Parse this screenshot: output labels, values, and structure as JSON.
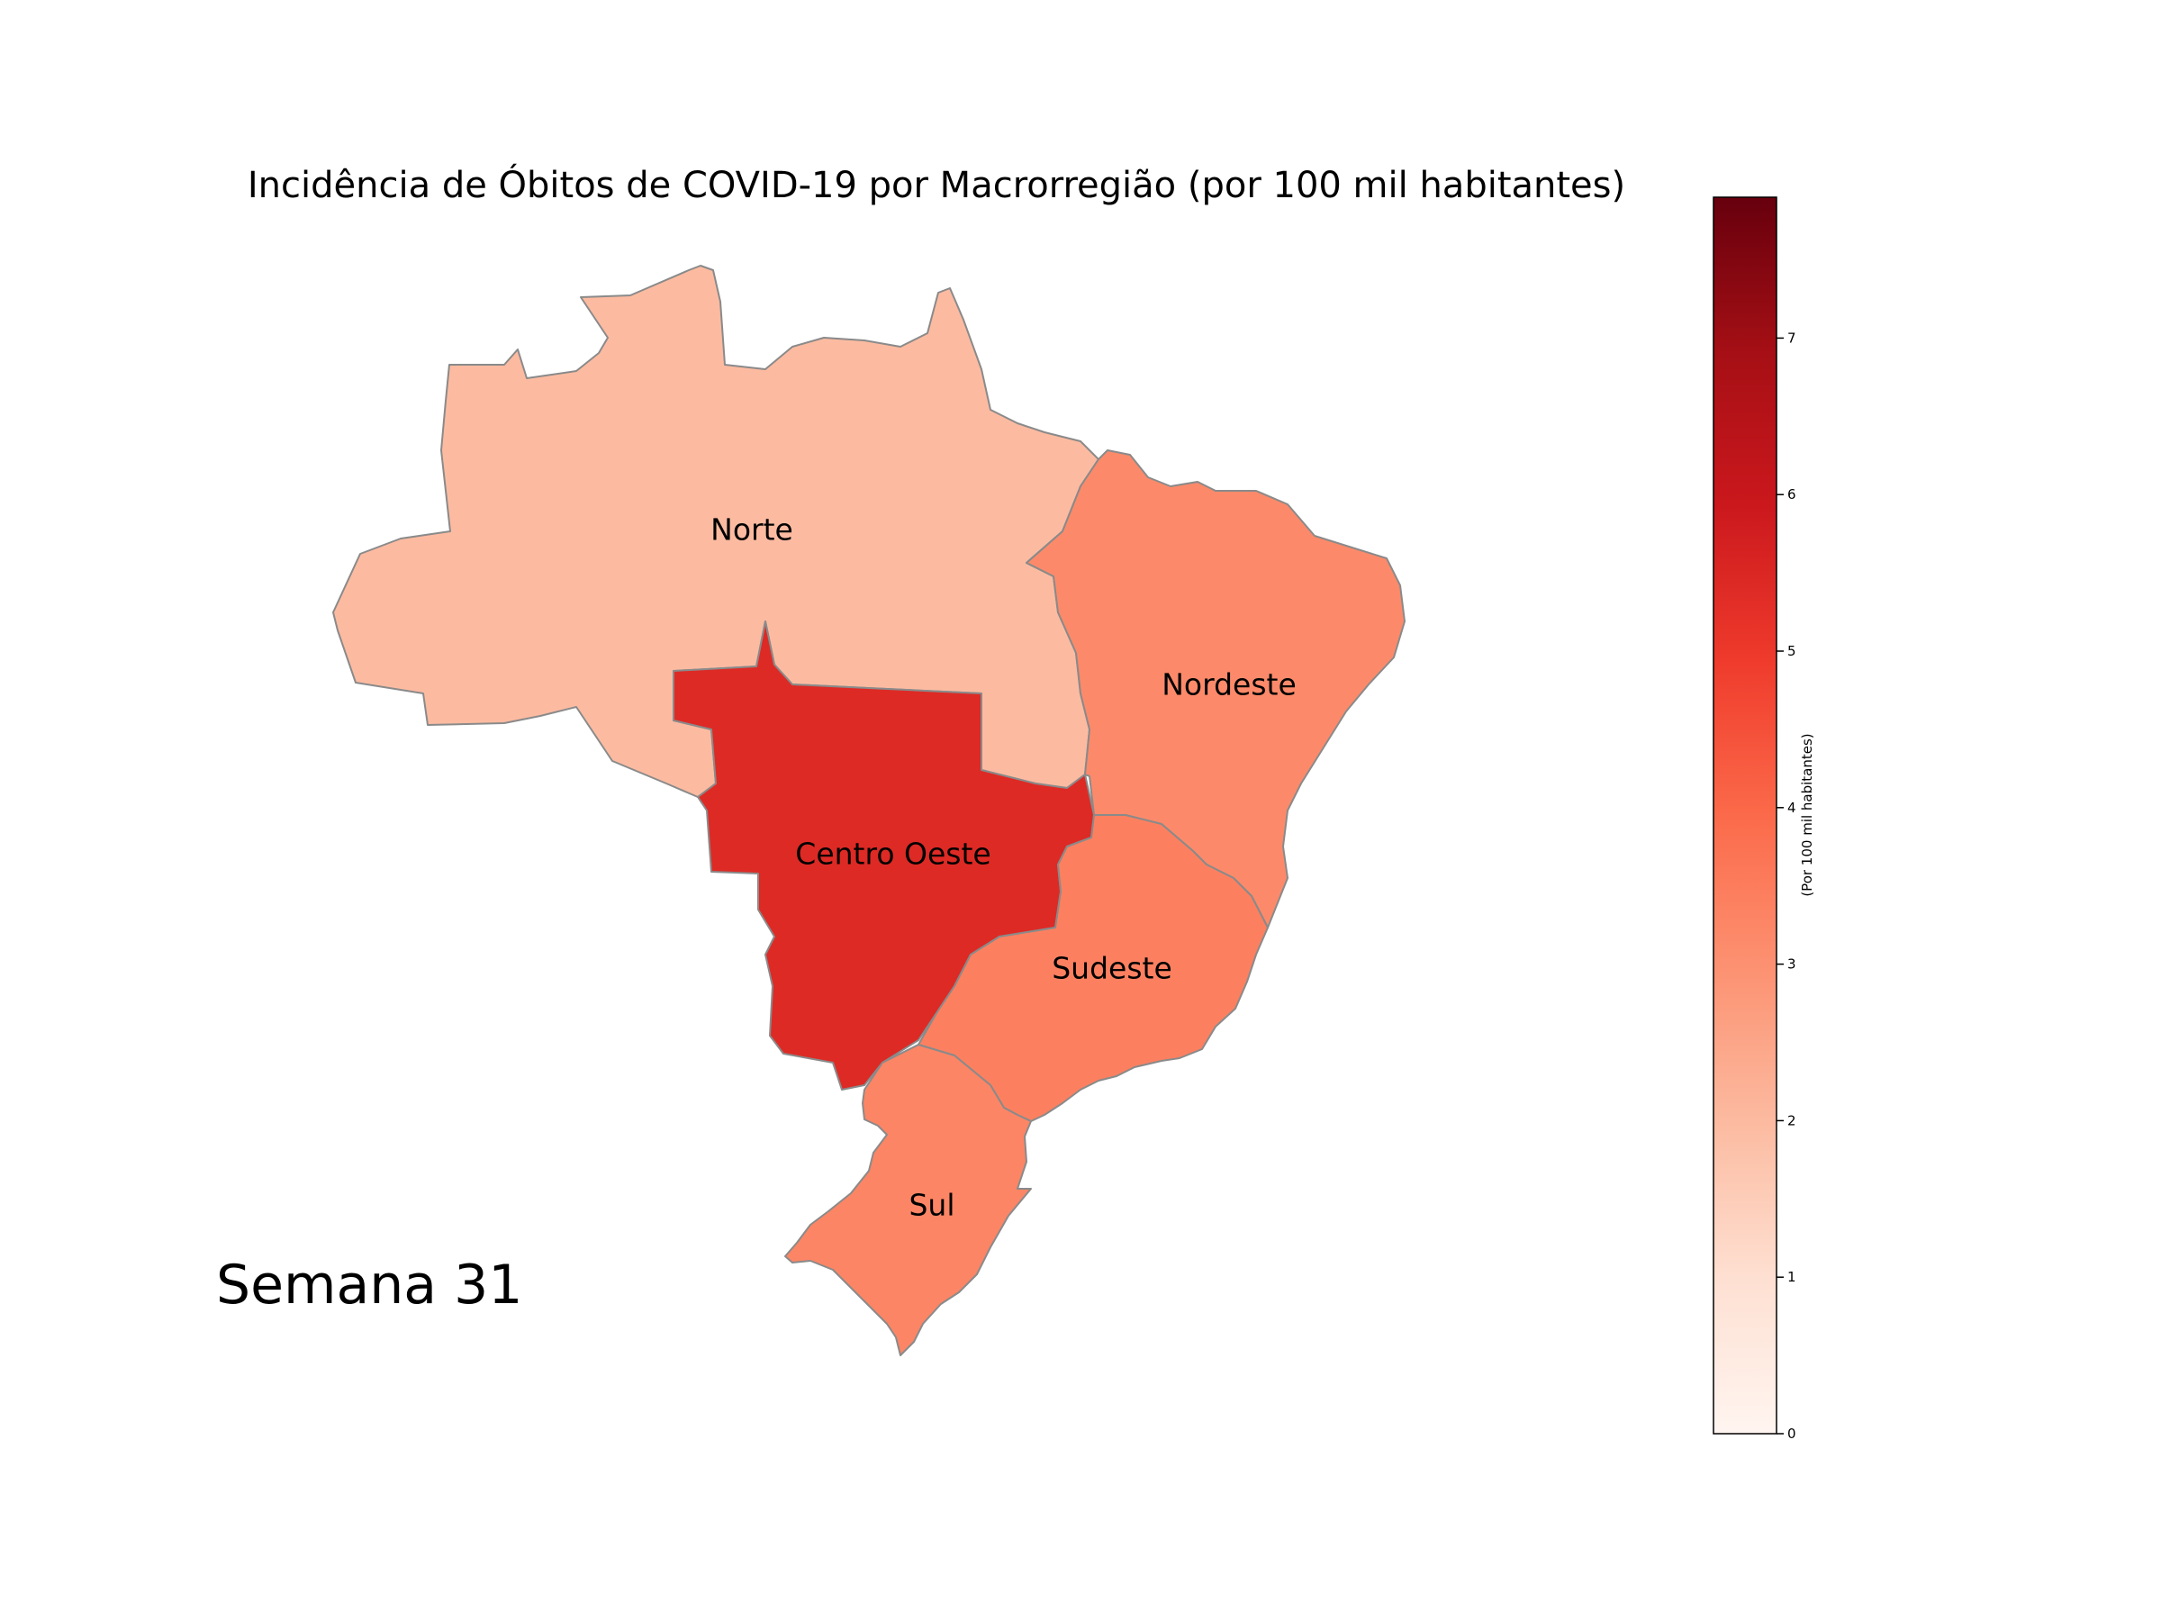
{
  "title": "Incidência de Óbitos de COVID-19 por Macrorregião (por 100 mil habitantes)",
  "week_label": "Semana 31",
  "colorbar": {
    "label": "(Por 100 mil habitantes)",
    "min": 0,
    "max": 7.9,
    "ticks": [
      "0",
      "1",
      "2",
      "3",
      "4",
      "5",
      "6",
      "7"
    ],
    "colormap": "Reds"
  },
  "regions": [
    {
      "name": "Norte",
      "value": 1.8,
      "color": "#fcbba1"
    },
    {
      "name": "Nordeste",
      "value": 3.0,
      "color": "#fc8a6a"
    },
    {
      "name": "Centro Oeste",
      "value": 5.4,
      "color": "#dd2a25"
    },
    {
      "name": "Sudeste",
      "value": 3.2,
      "color": "#fc8060"
    },
    {
      "name": "Sul",
      "value": 3.1,
      "color": "#fc8565"
    }
  ],
  "chart_data": {
    "type": "choropleth",
    "title": "Incidência de Óbitos de COVID-19 por Macrorregião (por 100 mil habitantes)",
    "categories": [
      "Norte",
      "Nordeste",
      "Centro Oeste",
      "Sudeste",
      "Sul"
    ],
    "values": [
      1.8,
      3.0,
      5.4,
      3.2,
      3.1
    ],
    "colorbar_range": [
      0,
      7.9
    ],
    "colorbar_label": "(Por 100 mil habitantes)"
  }
}
